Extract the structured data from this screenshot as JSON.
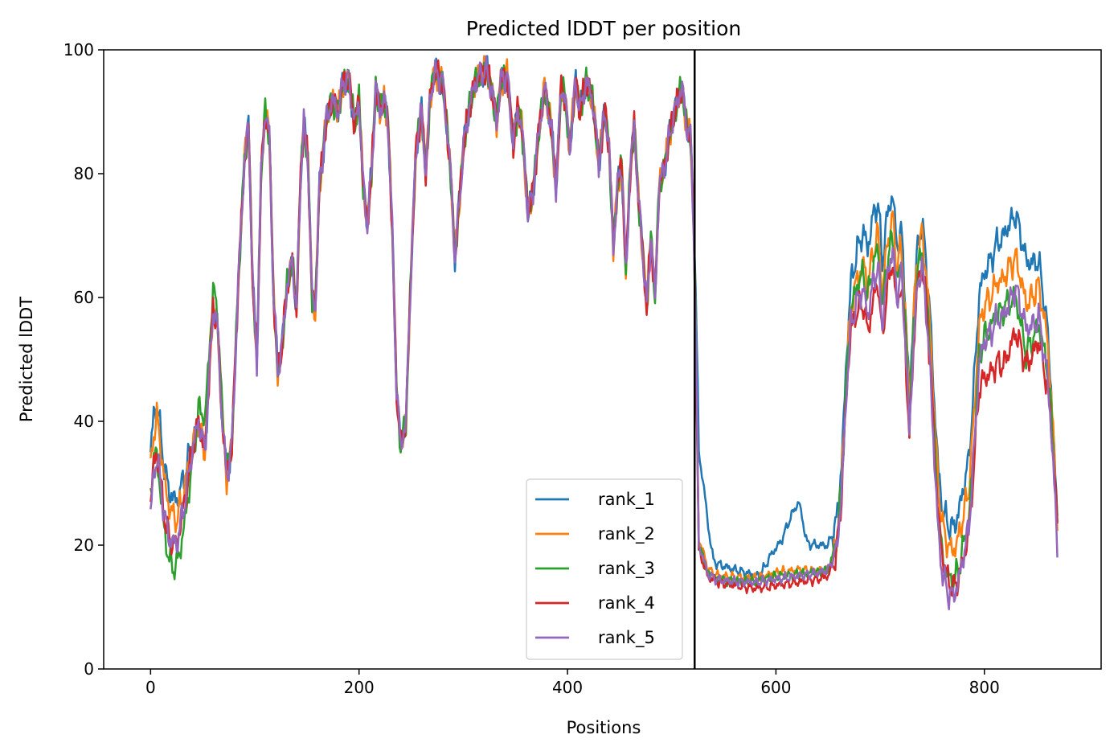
{
  "chart_data": {
    "type": "line",
    "title": "Predicted lDDT per position",
    "xlabel": "Positions",
    "ylabel": "Predicted lDDT",
    "xlim": [
      -45,
      912
    ],
    "ylim": [
      0,
      100
    ],
    "xticks": [
      0,
      200,
      400,
      600,
      800
    ],
    "yticks": [
      0,
      20,
      40,
      60,
      80,
      100
    ],
    "legend_position": "lower right",
    "grid": false,
    "vline_x": 522,
    "base_profile": [
      [
        0,
        30
      ],
      [
        3,
        36
      ],
      [
        6,
        38
      ],
      [
        9,
        34
      ],
      [
        13,
        28
      ],
      [
        18,
        24
      ],
      [
        25,
        23
      ],
      [
        33,
        29
      ],
      [
        40,
        36
      ],
      [
        46,
        40
      ],
      [
        52,
        35
      ],
      [
        57,
        50
      ],
      [
        60,
        58
      ],
      [
        64,
        56
      ],
      [
        68,
        42
      ],
      [
        73,
        31
      ],
      [
        78,
        36
      ],
      [
        84,
        62
      ],
      [
        90,
        82
      ],
      [
        94,
        88
      ],
      [
        98,
        62
      ],
      [
        102,
        50
      ],
      [
        106,
        80
      ],
      [
        110,
        90
      ],
      [
        114,
        86
      ],
      [
        118,
        60
      ],
      [
        122,
        48
      ],
      [
        126,
        52
      ],
      [
        131,
        62
      ],
      [
        136,
        66
      ],
      [
        140,
        58
      ],
      [
        144,
        80
      ],
      [
        147,
        88
      ],
      [
        151,
        82
      ],
      [
        155,
        60
      ],
      [
        158,
        58
      ],
      [
        162,
        78
      ],
      [
        168,
        88
      ],
      [
        174,
        92
      ],
      [
        180,
        90
      ],
      [
        185,
        95
      ],
      [
        190,
        95
      ],
      [
        196,
        88
      ],
      [
        200,
        92
      ],
      [
        204,
        78
      ],
      [
        208,
        72
      ],
      [
        212,
        80
      ],
      [
        216,
        94
      ],
      [
        220,
        90
      ],
      [
        224,
        92
      ],
      [
        228,
        88
      ],
      [
        232,
        70
      ],
      [
        236,
        45
      ],
      [
        240,
        36
      ],
      [
        245,
        40
      ],
      [
        250,
        65
      ],
      [
        255,
        85
      ],
      [
        260,
        90
      ],
      [
        264,
        80
      ],
      [
        268,
        92
      ],
      [
        272,
        96
      ],
      [
        276,
        96
      ],
      [
        280,
        95
      ],
      [
        284,
        88
      ],
      [
        288,
        80
      ],
      [
        292,
        66
      ],
      [
        296,
        75
      ],
      [
        300,
        84
      ],
      [
        305,
        90
      ],
      [
        310,
        94
      ],
      [
        316,
        96
      ],
      [
        322,
        97
      ],
      [
        328,
        93
      ],
      [
        332,
        88
      ],
      [
        336,
        95
      ],
      [
        342,
        96
      ],
      [
        348,
        85
      ],
      [
        352,
        90
      ],
      [
        356,
        88
      ],
      [
        362,
        74
      ],
      [
        366,
        76
      ],
      [
        372,
        86
      ],
      [
        378,
        94
      ],
      [
        384,
        88
      ],
      [
        389,
        78
      ],
      [
        394,
        94
      ],
      [
        398,
        92
      ],
      [
        402,
        84
      ],
      [
        408,
        95
      ],
      [
        412,
        90
      ],
      [
        418,
        95
      ],
      [
        424,
        92
      ],
      [
        430,
        82
      ],
      [
        436,
        90
      ],
      [
        440,
        84
      ],
      [
        444,
        68
      ],
      [
        448,
        78
      ],
      [
        452,
        82
      ],
      [
        456,
        64
      ],
      [
        460,
        80
      ],
      [
        464,
        88
      ],
      [
        468,
        76
      ],
      [
        472,
        68
      ],
      [
        476,
        58
      ],
      [
        480,
        70
      ],
      [
        484,
        60
      ],
      [
        488,
        78
      ],
      [
        494,
        82
      ],
      [
        500,
        88
      ],
      [
        506,
        92
      ],
      [
        510,
        94
      ],
      [
        514,
        88
      ],
      [
        518,
        86
      ],
      [
        521,
        72
      ],
      [
        523,
        55
      ],
      [
        526,
        21
      ],
      [
        530,
        19
      ],
      [
        535,
        16
      ],
      [
        545,
        15
      ],
      [
        560,
        14.5
      ],
      [
        580,
        14
      ],
      [
        600,
        14.5
      ],
      [
        620,
        15
      ],
      [
        640,
        15.5
      ],
      [
        650,
        16
      ],
      [
        658,
        20
      ],
      [
        663,
        30
      ],
      [
        668,
        48
      ],
      [
        672,
        58
      ],
      [
        678,
        62
      ],
      [
        684,
        64
      ],
      [
        688,
        60
      ],
      [
        693,
        65
      ],
      [
        698,
        68
      ],
      [
        702,
        58
      ],
      [
        706,
        65
      ],
      [
        712,
        70
      ],
      [
        716,
        62
      ],
      [
        720,
        66
      ],
      [
        724,
        56
      ],
      [
        728,
        40
      ],
      [
        732,
        55
      ],
      [
        736,
        65
      ],
      [
        740,
        68
      ],
      [
        744,
        62
      ],
      [
        748,
        52
      ],
      [
        752,
        38
      ],
      [
        756,
        26
      ],
      [
        760,
        20
      ],
      [
        765,
        17
      ],
      [
        770,
        16
      ],
      [
        775,
        18
      ],
      [
        780,
        22
      ],
      [
        785,
        26
      ],
      [
        790,
        38
      ],
      [
        795,
        52
      ],
      [
        800,
        55
      ],
      [
        806,
        56
      ],
      [
        812,
        58
      ],
      [
        818,
        58
      ],
      [
        824,
        60
      ],
      [
        830,
        62
      ],
      [
        836,
        58
      ],
      [
        840,
        55
      ],
      [
        846,
        56
      ],
      [
        852,
        58
      ],
      [
        856,
        54
      ],
      [
        860,
        50
      ],
      [
        864,
        42
      ],
      [
        868,
        30
      ],
      [
        870,
        24
      ]
    ],
    "series": [
      {
        "name": "rank_1",
        "color": "#1f77b4",
        "offsets": [
          [
            0,
            5
          ],
          [
            10,
            5
          ],
          [
            25,
            4
          ],
          [
            45,
            0
          ],
          [
            520,
            0
          ],
          [
            526,
            14
          ],
          [
            532,
            10
          ],
          [
            540,
            2
          ],
          [
            585,
            1
          ],
          [
            595,
            4
          ],
          [
            605,
            6
          ],
          [
            615,
            10
          ],
          [
            622,
            12
          ],
          [
            630,
            5
          ],
          [
            650,
            4
          ],
          [
            665,
            3
          ],
          [
            690,
            8
          ],
          [
            712,
            7
          ],
          [
            730,
            3
          ],
          [
            760,
            6
          ],
          [
            790,
            8
          ],
          [
            800,
            9
          ],
          [
            820,
            12
          ],
          [
            840,
            11
          ],
          [
            860,
            6
          ],
          [
            870,
            0
          ]
        ]
      },
      {
        "name": "rank_2",
        "color": "#ff7f0e",
        "offsets": [
          [
            0,
            2
          ],
          [
            10,
            3
          ],
          [
            25,
            1
          ],
          [
            45,
            0
          ],
          [
            520,
            0
          ],
          [
            526,
            0
          ],
          [
            540,
            0
          ],
          [
            600,
            1
          ],
          [
            620,
            1
          ],
          [
            650,
            0
          ],
          [
            665,
            0
          ],
          [
            690,
            2
          ],
          [
            712,
            3
          ],
          [
            730,
            2
          ],
          [
            760,
            3
          ],
          [
            790,
            3
          ],
          [
            820,
            5
          ],
          [
            840,
            4
          ],
          [
            860,
            4
          ],
          [
            870,
            0
          ]
        ]
      },
      {
        "name": "rank_3",
        "color": "#2ca02c",
        "offsets": [
          [
            0,
            -1
          ],
          [
            10,
            -5
          ],
          [
            20,
            -7
          ],
          [
            30,
            -6
          ],
          [
            40,
            -3
          ],
          [
            50,
            5
          ],
          [
            60,
            3
          ],
          [
            80,
            0
          ],
          [
            520,
            0
          ],
          [
            526,
            -1
          ],
          [
            600,
            0.5
          ],
          [
            650,
            0
          ],
          [
            665,
            0
          ],
          [
            700,
            0
          ],
          [
            730,
            0
          ],
          [
            760,
            -2
          ],
          [
            790,
            -2
          ],
          [
            820,
            0
          ],
          [
            840,
            -4
          ],
          [
            860,
            -1
          ],
          [
            870,
            0
          ]
        ]
      },
      {
        "name": "rank_4",
        "color": "#d62728",
        "offsets": [
          [
            0,
            -3
          ],
          [
            10,
            -3
          ],
          [
            25,
            -3
          ],
          [
            45,
            0
          ],
          [
            520,
            0
          ],
          [
            526,
            -2
          ],
          [
            540,
            -1
          ],
          [
            580,
            -1
          ],
          [
            600,
            -1
          ],
          [
            650,
            -1
          ],
          [
            665,
            -2
          ],
          [
            690,
            -6
          ],
          [
            712,
            -4
          ],
          [
            730,
            -3
          ],
          [
            760,
            -2
          ],
          [
            790,
            -5
          ],
          [
            800,
            -8
          ],
          [
            820,
            -9
          ],
          [
            840,
            -6
          ],
          [
            860,
            -4
          ],
          [
            870,
            0
          ]
        ]
      },
      {
        "name": "rank_5",
        "color": "#9467bd",
        "offsets": [
          [
            0,
            -5
          ],
          [
            10,
            -3
          ],
          [
            25,
            -3
          ],
          [
            45,
            0
          ],
          [
            520,
            0
          ],
          [
            526,
            -1
          ],
          [
            580,
            0
          ],
          [
            650,
            0
          ],
          [
            665,
            -2
          ],
          [
            690,
            -3
          ],
          [
            712,
            -2
          ],
          [
            730,
            -2
          ],
          [
            760,
            -5
          ],
          [
            790,
            -3
          ],
          [
            800,
            -2
          ],
          [
            820,
            -1
          ],
          [
            840,
            0
          ],
          [
            860,
            -2
          ],
          [
            870,
            -4
          ]
        ]
      }
    ]
  }
}
